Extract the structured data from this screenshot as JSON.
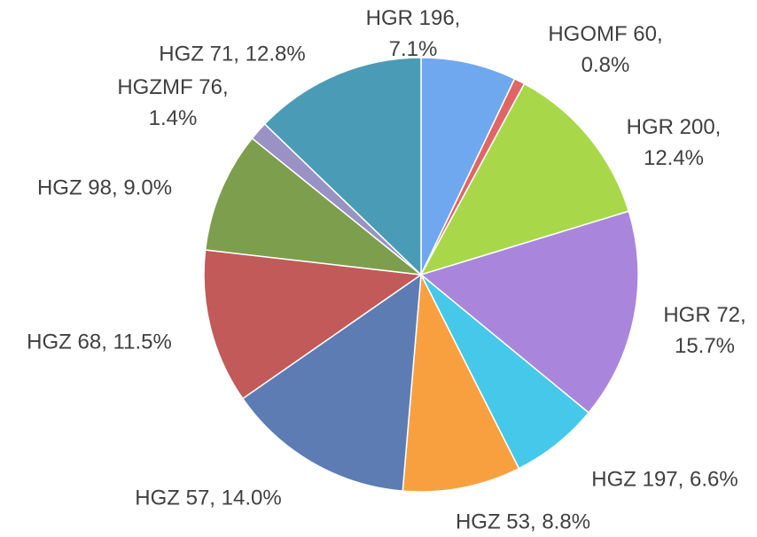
{
  "chart_data": {
    "type": "pie",
    "values": [
      7.1,
      0.8,
      12.4,
      15.7,
      6.6,
      8.8,
      14.0,
      11.5,
      9.0,
      1.4,
      12.8
    ],
    "value_labels": [
      "HGR 196, 7.1%",
      "HGOMF 60, 0.8%",
      "HGR 200, 12.4%",
      "HGR 72, 15.7%",
      "HGZ 197, 6.6%",
      "HGZ 53, 8.8%",
      "HGZ 57, 14.0%",
      "HGZ 68, 11.5%",
      "HGZ 98, 9.0%",
      "HGZMF 76, 1.4%",
      "HGZ 71, 12.8%"
    ],
    "colors": [
      "#6fa8ee",
      "#e06666",
      "#a8d84a",
      "#a986dc",
      "#46c8ea",
      "#f8a040",
      "#5e7cb4",
      "#c25a5a",
      "#7d9e4c",
      "#9a92c4",
      "#4a9cb6"
    ]
  }
}
